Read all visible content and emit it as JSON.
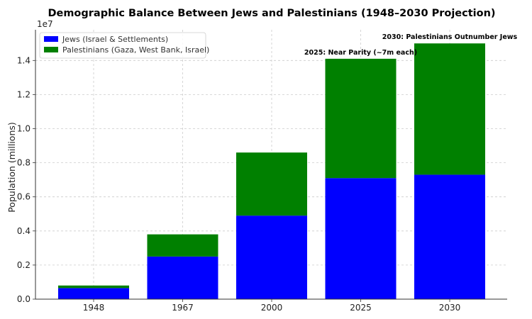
{
  "chart_data": {
    "type": "bar",
    "stacked": true,
    "title": "Demographic Balance Between Jews and Palestinians (1948–2030 Projection)",
    "xlabel": "",
    "ylabel": "Population (millions)",
    "y_scale_label": "1e7",
    "ylim": [
      0,
      15800000
    ],
    "yticks": [
      0,
      2000000,
      4000000,
      6000000,
      8000000,
      10000000,
      12000000,
      14000000
    ],
    "ytick_labels": [
      "0.0",
      "0.2",
      "0.4",
      "0.6",
      "0.8",
      "1.0",
      "1.2",
      "1.4"
    ],
    "categories": [
      "1948",
      "1967",
      "2000",
      "2025",
      "2030"
    ],
    "grid": true,
    "legend_position": "top-left",
    "series": [
      {
        "name": "Jews (Israel & Settlements)",
        "color": "#0000ff",
        "values": [
          650000,
          2500000,
          4900000,
          7100000,
          7300000
        ]
      },
      {
        "name": "Palestinians (Gaza, West Bank, Israel)",
        "color": "#008000",
        "values": [
          150000,
          1300000,
          3700000,
          7000000,
          7700000
        ]
      }
    ],
    "annotations": [
      {
        "category": "2025",
        "text": "2025: Near Parity (~7m each)"
      },
      {
        "category": "2030",
        "text": "2030: Palestinians Outnumber Jews"
      }
    ]
  }
}
